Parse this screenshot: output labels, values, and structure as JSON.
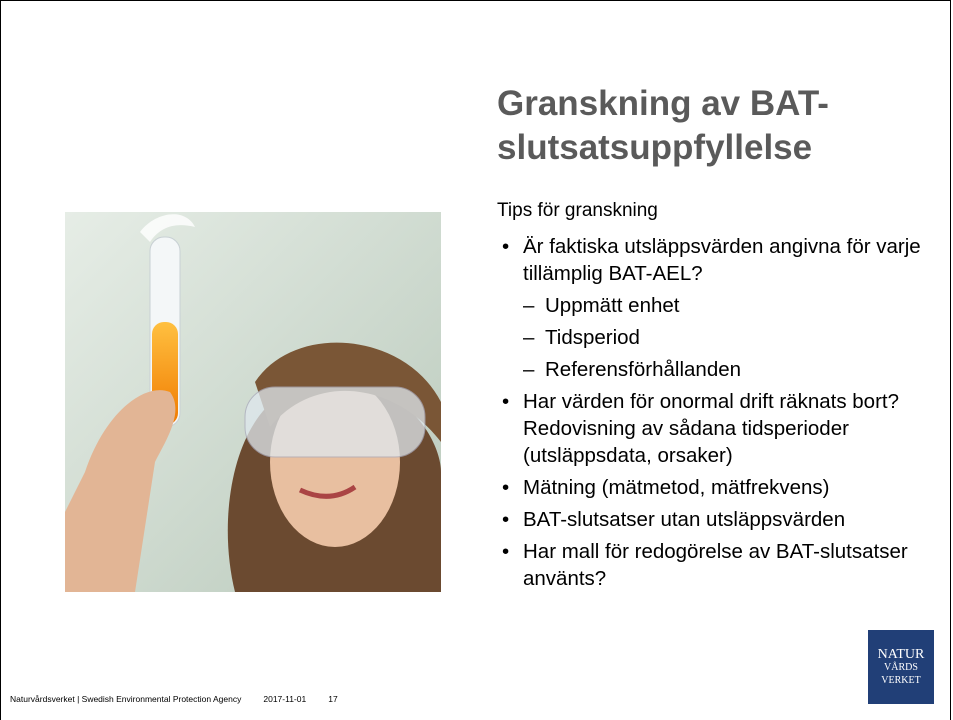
{
  "slide": {
    "title": "Granskning av BAT-slutsatsuppfyllelse",
    "subtitle": "Tips för granskning",
    "bullets": [
      {
        "text": "Är faktiska utsläppsvärden angivna för varje tillämplig BAT-AEL?",
        "subitems": [
          "Uppmätt enhet",
          "Tidsperiod",
          "Referensförhållanden"
        ]
      },
      {
        "text": "Har värden för onormal drift räknats bort? Redovisning av sådana tidsperioder (utsläppsdata, orsaker)",
        "subitems": []
      },
      {
        "text": "Mätning (mätmetod, mätfrekvens)",
        "subitems": []
      },
      {
        "text": "BAT-slutsatser utan utsläppsvärden",
        "subitems": []
      },
      {
        "text": "Har mall för redogörelse av BAT-slutsatser använts?",
        "subitems": []
      }
    ]
  },
  "footer": {
    "organization": "Naturvårdsverket | Swedish Environmental Protection Agency",
    "date": "2017-11-01",
    "page": "17"
  },
  "logo": {
    "lines": [
      "NATUR",
      "VÅRDS",
      "VERKET"
    ]
  }
}
